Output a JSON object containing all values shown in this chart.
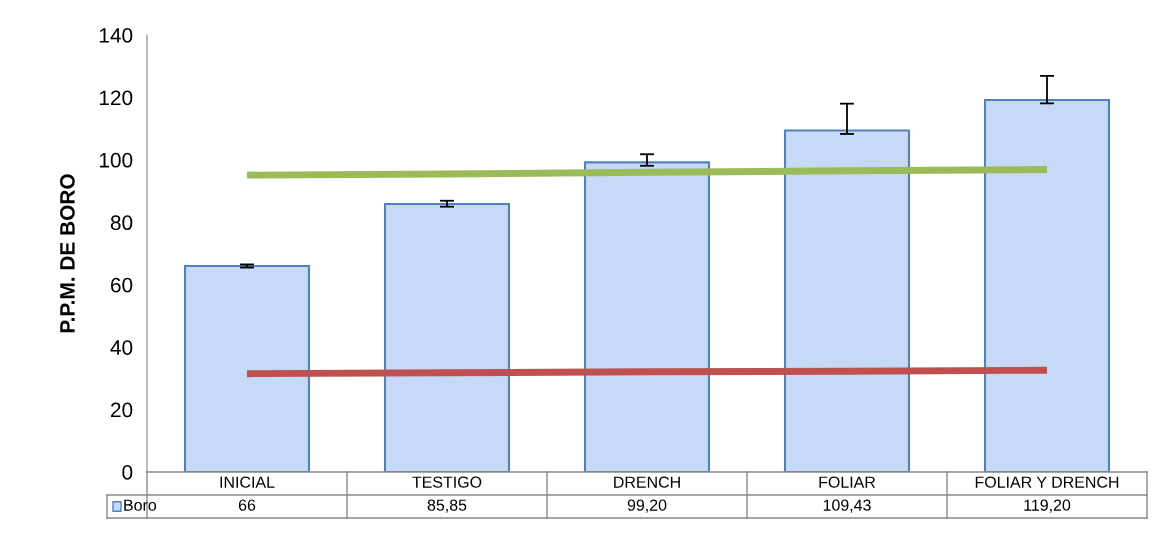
{
  "chart_data": {
    "type": "bar",
    "ylabel": "P.P.M. DE BORO",
    "categories": [
      "INICIAL",
      "TESTIGO",
      "DRENCH",
      "FOLIAR",
      "FOLIAR Y DRENCH"
    ],
    "series": [
      {
        "name": "Boro",
        "color": "#c6d9f7",
        "values": [
          66,
          85.85,
          99.2,
          109.43,
          119.2
        ],
        "value_labels": [
          "66",
          "85,85",
          "99,20",
          "109,43",
          "119,20"
        ],
        "errors": [
          [
            65.5,
            66.5
          ],
          [
            85,
            86.9
          ],
          [
            98.1,
            101.8
          ],
          [
            108.3,
            118
          ],
          [
            118.1,
            126.9
          ]
        ]
      },
      {
        "type": "line",
        "color": "#9bbb59",
        "values": [
          95.1,
          95.5,
          96,
          96.5,
          96.9
        ]
      },
      {
        "type": "line",
        "color": "#c0504d",
        "values": [
          31.5,
          31.8,
          32.1,
          32.3,
          32.6
        ]
      }
    ],
    "ylim": [
      0,
      140
    ],
    "yticks": [
      0,
      20,
      40,
      60,
      80,
      100,
      120,
      140
    ],
    "grid": false,
    "legend": "bottom"
  }
}
